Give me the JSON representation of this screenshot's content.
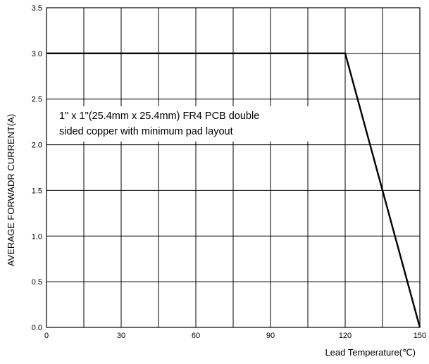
{
  "chart_data": {
    "type": "line",
    "title": "",
    "xlabel": "Lead Temperature(℃)",
    "ylabel": "AVERAGE FORWADR CURRENT(A)",
    "xlim": [
      0,
      150
    ],
    "ylim": [
      0,
      3.5
    ],
    "x_ticks": [
      "0",
      "30",
      "60",
      "90",
      "120",
      "150"
    ],
    "y_ticks": [
      "0.0",
      "0.5",
      "1.0",
      "1.5",
      "2.0",
      "2.5",
      "3.0",
      "3.5"
    ],
    "grid": true,
    "x_grid_step": 15,
    "y_grid_step": 0.5,
    "series": [
      {
        "x": [
          0,
          120,
          150
        ],
        "values": [
          3.0,
          3.0,
          0.0
        ]
      }
    ],
    "annotation": {
      "lines": [
        "1\" x 1\"(25.4mm x 25.4mm) FR4 PCB double",
        "sided copper with minimum pad layout"
      ]
    }
  }
}
